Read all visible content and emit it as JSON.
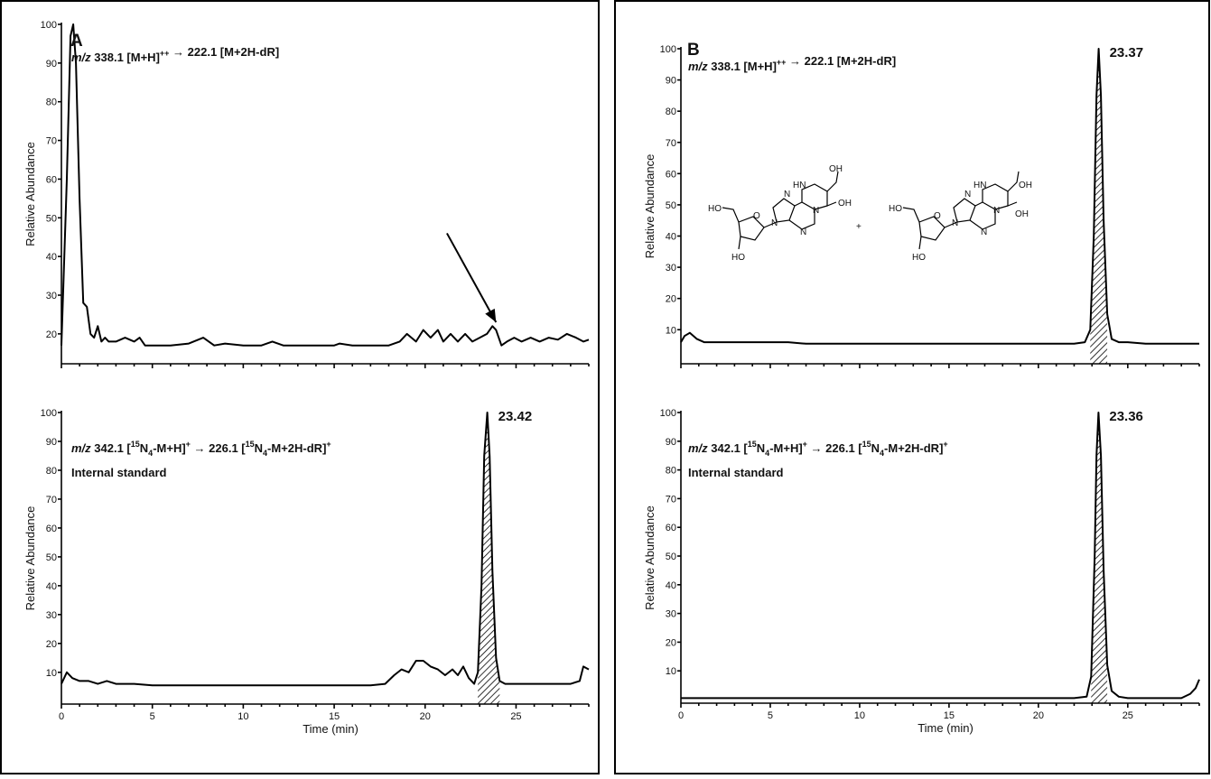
{
  "chart_data": [
    {
      "id": "A-top",
      "type": "line",
      "panel_label": "A",
      "title_parts": {
        "prefix": "m/z",
        "text": " 338.1 [M+H]",
        "sup": "+",
        "arrow": " → 222.1 [M+2H-dR]",
        "sup2": "+"
      },
      "ylabel": "Relative Abundance",
      "xlabel": "",
      "xlim": [
        0,
        29
      ],
      "ylim": [
        16,
        100
      ],
      "yticks": [
        20,
        30,
        40,
        50,
        60,
        70,
        80,
        90,
        100
      ],
      "xticks": [],
      "peak_label": "",
      "shaded": null,
      "annotation_arrow": {
        "from": [
          21.2,
          46
        ],
        "to": [
          23.9,
          23
        ]
      },
      "series": [
        {
          "x": [
            0.0,
            0.3,
            0.5,
            0.65,
            0.8,
            1.0,
            1.2,
            1.4,
            1.6,
            1.8,
            2.0,
            2.2,
            2.4,
            2.6,
            3.0,
            3.5,
            4.0,
            4.3,
            4.6,
            5.0,
            6.0,
            7.0,
            7.8,
            8.4,
            9.0,
            10.0,
            11.0,
            11.6,
            12.2,
            13.0,
            14.0,
            15.0,
            15.3,
            16.0,
            17.0,
            18.0,
            18.6,
            19.0,
            19.5,
            19.9,
            20.3,
            20.7,
            21.0,
            21.4,
            21.8,
            22.2,
            22.6,
            23.0,
            23.4,
            23.7,
            23.9,
            24.2,
            24.5,
            24.9,
            25.3,
            25.8,
            26.3,
            26.8,
            27.3,
            27.8,
            28.3,
            28.7,
            29.0
          ],
          "y": [
            17,
            60,
            97,
            100,
            90,
            55,
            28,
            27,
            20,
            19,
            22,
            18,
            19,
            18,
            18,
            19,
            18,
            19,
            17,
            17,
            17,
            17.5,
            19,
            17,
            17.5,
            17,
            17,
            18,
            17,
            17,
            17,
            17,
            17.5,
            17,
            17,
            17,
            18,
            20,
            18,
            21,
            19,
            21,
            18,
            20,
            18,
            20,
            18,
            19,
            20,
            22,
            21,
            17,
            18,
            19,
            18,
            19,
            18,
            19,
            18.5,
            20,
            19,
            18,
            18.5
          ]
        }
      ]
    },
    {
      "id": "A-bottom",
      "type": "line",
      "title_parts": {
        "prefix": "m/z",
        "text": " 342.1 [",
        "sup": "15",
        "text2": "N",
        "sub": "4",
        "text3": "-M+H]",
        "sup2": "+",
        "arrow": " → 226.1 [",
        "sup3": "15",
        "text4": "N",
        "sub2": "4",
        "text5": "-M+2H-dR]",
        "sup4": "+"
      },
      "subtitle": "Internal standard",
      "ylabel": "Relative Abundance",
      "xlabel": "Time (min)",
      "xlim": [
        0,
        29
      ],
      "ylim": [
        4,
        100
      ],
      "yticks": [
        10,
        20,
        30,
        40,
        50,
        60,
        70,
        80,
        90,
        100
      ],
      "xticks": [
        0,
        5,
        10,
        15,
        20,
        25
      ],
      "peak_label": "23.42",
      "shaded": [
        22.9,
        24.1
      ],
      "series": [
        {
          "x": [
            0.0,
            0.3,
            0.6,
            1.0,
            1.5,
            2.0,
            2.5,
            3.0,
            3.5,
            4.0,
            5.0,
            6.0,
            7.0,
            8.0,
            9.0,
            10.0,
            11.0,
            12.0,
            13.0,
            14.0,
            15.0,
            16.0,
            17.0,
            17.8,
            18.3,
            18.7,
            19.1,
            19.5,
            19.9,
            20.3,
            20.7,
            21.1,
            21.5,
            21.8,
            22.1,
            22.4,
            22.7,
            22.9,
            23.1,
            23.25,
            23.42,
            23.55,
            23.7,
            23.9,
            24.1,
            24.4,
            25.0,
            26.0,
            27.0,
            28.0,
            28.5,
            28.7,
            29.0
          ],
          "y": [
            6,
            10,
            8,
            7,
            7,
            6,
            7,
            6,
            6,
            6,
            5.5,
            5.5,
            5.5,
            5.5,
            5.5,
            5.5,
            5.5,
            5.5,
            5.5,
            5.5,
            5.5,
            5.5,
            5.5,
            6,
            9,
            11,
            10,
            14,
            14,
            12,
            11,
            9,
            11,
            9,
            12,
            8,
            6,
            10,
            40,
            85,
            100,
            85,
            45,
            15,
            7,
            6,
            6,
            6,
            6,
            6,
            7,
            12,
            11
          ]
        }
      ]
    },
    {
      "id": "B-top",
      "type": "line",
      "panel_label": "B",
      "title_parts": {
        "prefix": "m/z",
        "text": " 338.1 [M+H]",
        "sup": "+",
        "arrow": " → 222.1 [M+2H-dR]",
        "sup2": "+"
      },
      "ylabel": "Relative Abundance",
      "xlabel": "",
      "xlim": [
        0,
        29
      ],
      "ylim": [
        4,
        100
      ],
      "yticks": [
        10,
        20,
        30,
        40,
        50,
        60,
        70,
        80,
        90,
        100
      ],
      "xticks": [],
      "peak_label": "23.37",
      "shaded": [
        22.8,
        24.0
      ],
      "structure_plus": "+",
      "series": [
        {
          "x": [
            0.0,
            0.2,
            0.5,
            0.9,
            1.3,
            2.0,
            3.0,
            4.0,
            5.0,
            6.0,
            7.0,
            8.0,
            9.0,
            10.0,
            11.0,
            12.0,
            13.0,
            14.0,
            15.0,
            16.0,
            17.0,
            18.0,
            19.0,
            20.0,
            21.0,
            22.0,
            22.6,
            22.9,
            23.1,
            23.25,
            23.37,
            23.5,
            23.65,
            23.85,
            24.1,
            24.5,
            25.0,
            26.0,
            27.0,
            28.0,
            29.0
          ],
          "y": [
            6,
            8,
            9,
            7,
            6,
            6,
            6,
            6,
            6,
            6,
            5.5,
            5.5,
            5.5,
            5.5,
            5.5,
            5.5,
            5.5,
            5.5,
            5.5,
            5.5,
            5.5,
            5.5,
            5.5,
            5.5,
            5.5,
            5.5,
            6,
            10,
            40,
            85,
            100,
            85,
            45,
            15,
            7,
            6,
            6,
            5.5,
            5.5,
            5.5,
            5.5
          ]
        }
      ]
    },
    {
      "id": "B-bottom",
      "type": "line",
      "title_parts": {
        "prefix": "m/z",
        "text": " 342.1 [",
        "sup": "15",
        "text2": "N",
        "sub": "4",
        "text3": "-M+H]",
        "sup2": "+",
        "arrow": " → 226.1 [",
        "sup3": "15",
        "text4": "N",
        "sub2": "4",
        "text5": "-M+2H-dR]",
        "sup4": "+"
      },
      "subtitle": "Internal standard",
      "ylabel": "Relative Abundance",
      "xlabel": "Time (min)",
      "xlim": [
        0,
        29
      ],
      "ylim": [
        0,
        100
      ],
      "yticks": [
        10,
        20,
        30,
        40,
        50,
        60,
        70,
        80,
        90,
        100
      ],
      "xticks": [
        0,
        5,
        10,
        15,
        20,
        25
      ],
      "peak_label": "23.36",
      "shaded": [
        22.8,
        24.0
      ],
      "series": [
        {
          "x": [
            0.0,
            5.0,
            10.0,
            15.0,
            20.0,
            22.0,
            22.7,
            22.95,
            23.15,
            23.25,
            23.36,
            23.5,
            23.65,
            23.85,
            24.1,
            24.5,
            25.0,
            26.0,
            27.0,
            28.0,
            28.5,
            28.8,
            29.0
          ],
          "y": [
            0.5,
            0.5,
            0.5,
            0.5,
            0.5,
            0.5,
            1,
            8,
            50,
            85,
            100,
            85,
            45,
            12,
            3,
            1,
            0.5,
            0.5,
            0.5,
            0.5,
            2,
            4,
            7
          ]
        }
      ]
    }
  ]
}
